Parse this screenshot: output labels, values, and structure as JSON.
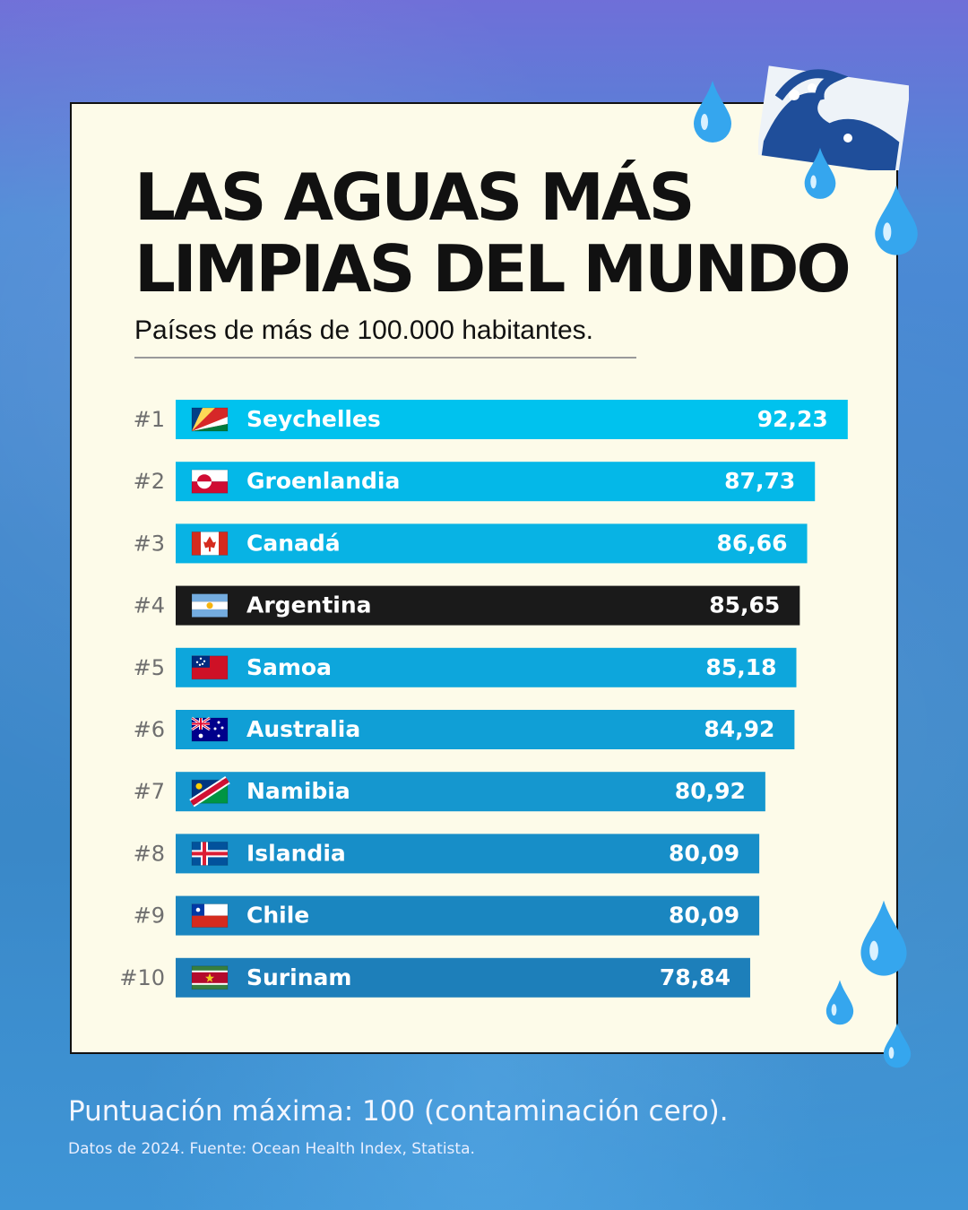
{
  "title_line1": "LAS AGUAS MÁS",
  "title_line2": "LIMPIAS DEL MUNDO",
  "subtitle": "Países de más de 100.000 habitantes.",
  "footer_main": "Puntuación máxima: 100 (contaminación cero).",
  "footer_source": "Datos de 2024. Fuente: Ocean Health Index, Statista.",
  "decorations": [
    "wave-icon",
    "water-drop-icon"
  ],
  "chart_data": {
    "type": "bar",
    "orientation": "horizontal",
    "title": "LAS AGUAS MÁS LIMPIAS DEL MUNDO",
    "xlim": [
      0,
      100
    ],
    "highlight": "Argentina",
    "ranks": [
      "#1",
      "#2",
      "#3",
      "#4",
      "#5",
      "#6",
      "#7",
      "#8",
      "#9",
      "#10"
    ],
    "categories": [
      "Seychelles",
      "Groenlandia",
      "Canadá",
      "Argentina",
      "Samoa",
      "Australia",
      "Namibia",
      "Islandia",
      "Chile",
      "Surinam"
    ],
    "value_labels": [
      "92,23",
      "87,73",
      "86,66",
      "85,65",
      "85,18",
      "84,92",
      "80,92",
      "80,09",
      "80,09",
      "78,84"
    ],
    "values": [
      92.23,
      87.73,
      86.66,
      85.65,
      85.18,
      84.92,
      80.92,
      80.09,
      80.09,
      78.84
    ],
    "flags": [
      "seychelles-flag-icon",
      "greenland-flag-icon",
      "canada-flag-icon",
      "argentina-flag-icon",
      "samoa-flag-icon",
      "australia-flag-icon",
      "namibia-flag-icon",
      "iceland-flag-icon",
      "chile-flag-icon",
      "suriname-flag-icon"
    ],
    "colors": [
      "#00c2ee",
      "#04b8e8",
      "#08b3e4",
      "#1a1a1a",
      "#0da6dc",
      "#109fd6",
      "#1597cf",
      "#178ec8",
      "#1a86c0",
      "#1d7fba"
    ]
  }
}
